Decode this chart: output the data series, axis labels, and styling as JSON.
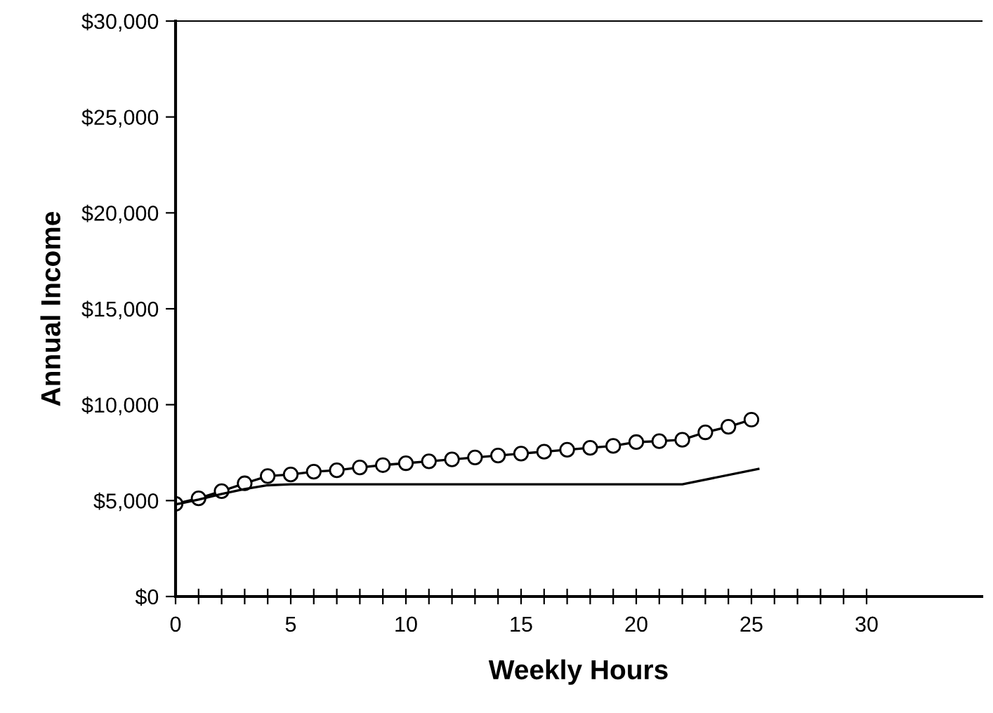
{
  "chart_data": {
    "type": "line",
    "xlabel": "Weekly Hours",
    "ylabel": "Annual Income",
    "series": [
      {
        "color": "#000000",
        "marker": "circle",
        "x": [
          0,
          1,
          2,
          3,
          4,
          5,
          6,
          7,
          8,
          9,
          10,
          11,
          12,
          13,
          14,
          15,
          16,
          17,
          18,
          19,
          20,
          21,
          22,
          23,
          24,
          25
        ],
        "values": [
          4830,
          5120,
          5490,
          5900,
          6280,
          6360,
          6510,
          6580,
          6730,
          6850,
          6950,
          7050,
          7150,
          7250,
          7350,
          7450,
          7550,
          7650,
          7750,
          7850,
          8050,
          8100,
          8170,
          8560,
          8850,
          9220
        ]
      },
      {
        "color": "#000000",
        "marker": "none",
        "x": [
          0,
          1,
          2,
          3,
          4,
          5,
          22,
          25.3
        ],
        "values": [
          4800,
          5050,
          5350,
          5600,
          5800,
          5850,
          5850,
          6650
        ]
      }
    ],
    "xlim": [
      0,
      35
    ],
    "xticks": [
      0,
      {
        "value": 1,
        "label": null
      },
      {
        "value": 2,
        "label": null
      },
      {
        "value": 3,
        "label": null
      },
      {
        "value": 4,
        "label": null
      },
      5,
      {
        "value": 6,
        "label": null
      },
      {
        "value": 7,
        "label": null
      },
      {
        "value": 8,
        "label": null
      },
      {
        "value": 9,
        "label": null
      },
      10,
      {
        "value": 11,
        "label": null
      },
      {
        "value": 12,
        "label": null
      },
      {
        "value": 13,
        "label": null
      },
      {
        "value": 14,
        "label": null
      },
      15,
      {
        "value": 16,
        "label": null
      },
      {
        "value": 17,
        "label": null
      },
      {
        "value": 18,
        "label": null
      },
      {
        "value": 19,
        "label": null
      },
      20,
      {
        "value": 21,
        "label": null
      },
      {
        "value": 22,
        "label": null
      },
      {
        "value": 23,
        "label": null
      },
      {
        "value": 24,
        "label": null
      },
      25,
      {
        "value": 26,
        "label": null
      },
      {
        "value": 27,
        "label": null
      },
      {
        "value": 28,
        "label": null
      },
      {
        "value": 29,
        "label": null
      },
      30
    ],
    "ylim": [
      0,
      30000
    ],
    "yticks": [
      {
        "value": 0,
        "label": "$0"
      },
      {
        "value": 5000,
        "label": "$5,000"
      },
      {
        "value": 10000,
        "label": "$10,000"
      },
      {
        "value": 15000,
        "label": "$15,000"
      },
      {
        "value": 20000,
        "label": "$20,000"
      },
      {
        "value": 25000,
        "label": "$25,000"
      },
      {
        "value": 30000,
        "label": "$30,000"
      }
    ],
    "grid": false,
    "legend": false
  }
}
